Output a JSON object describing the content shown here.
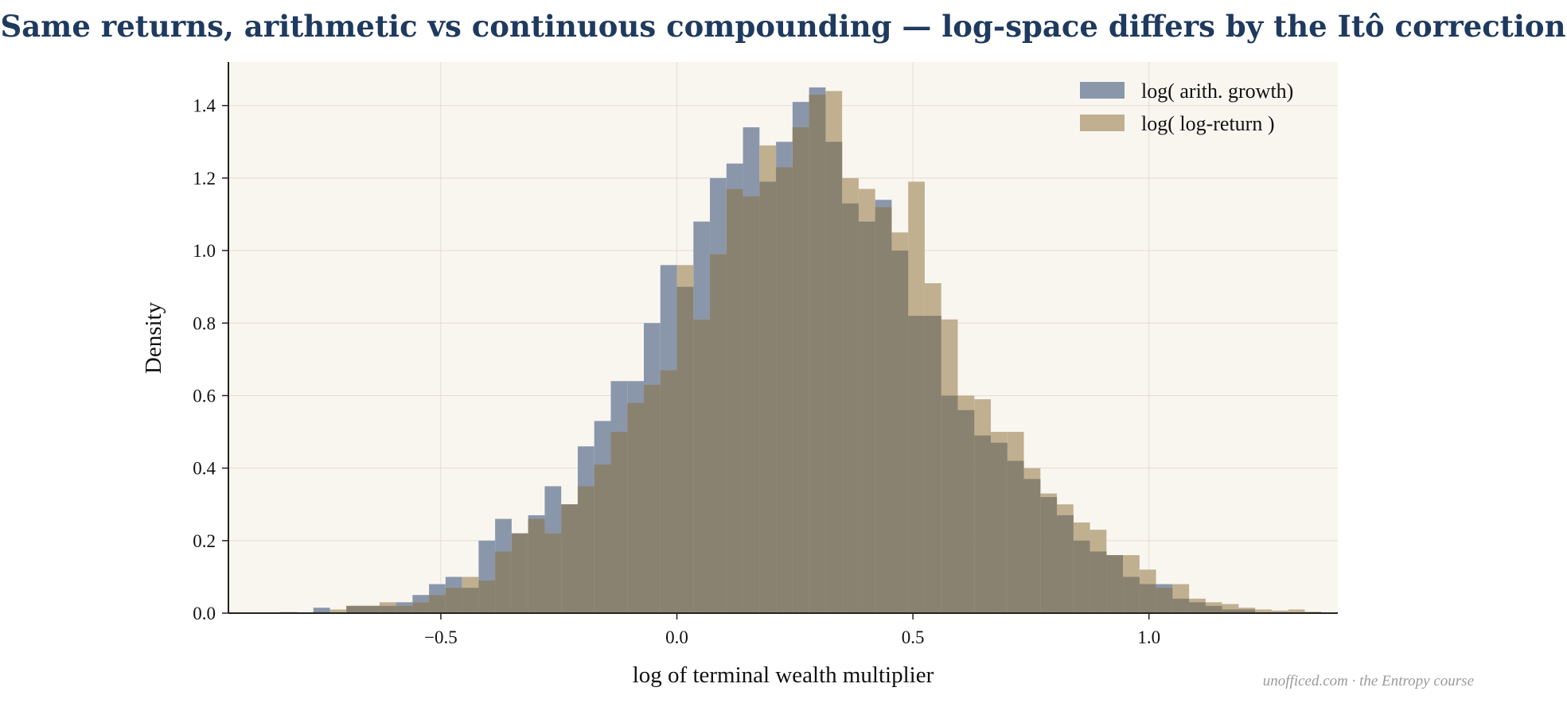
{
  "footer": "unofficed.com · the Entropy course",
  "colors": {
    "plot_background": "#f9f6f0",
    "arith_series": "#8a97ab",
    "logret_series": "#c0b090",
    "overlap": "#8a8270",
    "title": "#1f3a5f"
  },
  "chart_data": {
    "type": "histogram",
    "title": "Same returns, arithmetic vs continuous compounding — log-space differs by the Itô correction",
    "xlabel": "log of terminal wealth multiplier",
    "ylabel": "Density",
    "xlim": [
      -0.95,
      1.4
    ],
    "ylim": [
      0,
      1.52
    ],
    "xticks": [
      -0.5,
      0.0,
      0.5,
      1.0
    ],
    "xtick_labels": [
      "−0.5",
      "0.0",
      "0.5",
      "1.0"
    ],
    "yticks": [
      0.0,
      0.2,
      0.4,
      0.6,
      0.8,
      1.0,
      1.2,
      1.4
    ],
    "ytick_labels": [
      "0.0",
      "0.2",
      "0.4",
      "0.6",
      "0.8",
      "1.0",
      "1.2",
      "1.4"
    ],
    "grid": true,
    "legend_position": "top-right",
    "series": [
      {
        "name": "log( arith. growth)",
        "color": "#8a97ab",
        "bin_start": -0.84,
        "bin_width": 0.035,
        "values": [
          0.003,
          0.0,
          0.015,
          0.0,
          0.02,
          0.02,
          0.02,
          0.03,
          0.05,
          0.08,
          0.1,
          0.07,
          0.2,
          0.26,
          0.22,
          0.27,
          0.35,
          0.3,
          0.46,
          0.53,
          0.64,
          0.64,
          0.8,
          0.96,
          0.9,
          1.08,
          1.2,
          1.24,
          1.34,
          1.19,
          1.3,
          1.41,
          1.45,
          1.3,
          1.13,
          1.08,
          1.14,
          1.0,
          0.82,
          0.82,
          0.6,
          0.56,
          0.49,
          0.47,
          0.42,
          0.37,
          0.32,
          0.27,
          0.2,
          0.17,
          0.16,
          0.1,
          0.08,
          0.08,
          0.04,
          0.03,
          0.02,
          0.01,
          0.01,
          0.0,
          0.0,
          0.0,
          0.0,
          0.0
        ]
      },
      {
        "name": "log( log-return )",
        "color": "#c0b090",
        "bin_start": -0.84,
        "bin_width": 0.035,
        "values": [
          0.0,
          0.0,
          0.003,
          0.01,
          0.02,
          0.02,
          0.03,
          0.02,
          0.03,
          0.05,
          0.07,
          0.1,
          0.09,
          0.17,
          0.22,
          0.26,
          0.22,
          0.3,
          0.35,
          0.41,
          0.5,
          0.58,
          0.63,
          0.67,
          0.96,
          0.81,
          0.99,
          1.17,
          1.15,
          1.29,
          1.23,
          1.34,
          1.43,
          1.44,
          1.2,
          1.17,
          1.12,
          1.05,
          1.19,
          0.91,
          0.81,
          0.6,
          0.59,
          0.5,
          0.5,
          0.4,
          0.33,
          0.3,
          0.25,
          0.23,
          0.16,
          0.16,
          0.12,
          0.07,
          0.08,
          0.04,
          0.03,
          0.025,
          0.015,
          0.01,
          0.007,
          0.01,
          0.004,
          0.0
        ]
      }
    ]
  }
}
